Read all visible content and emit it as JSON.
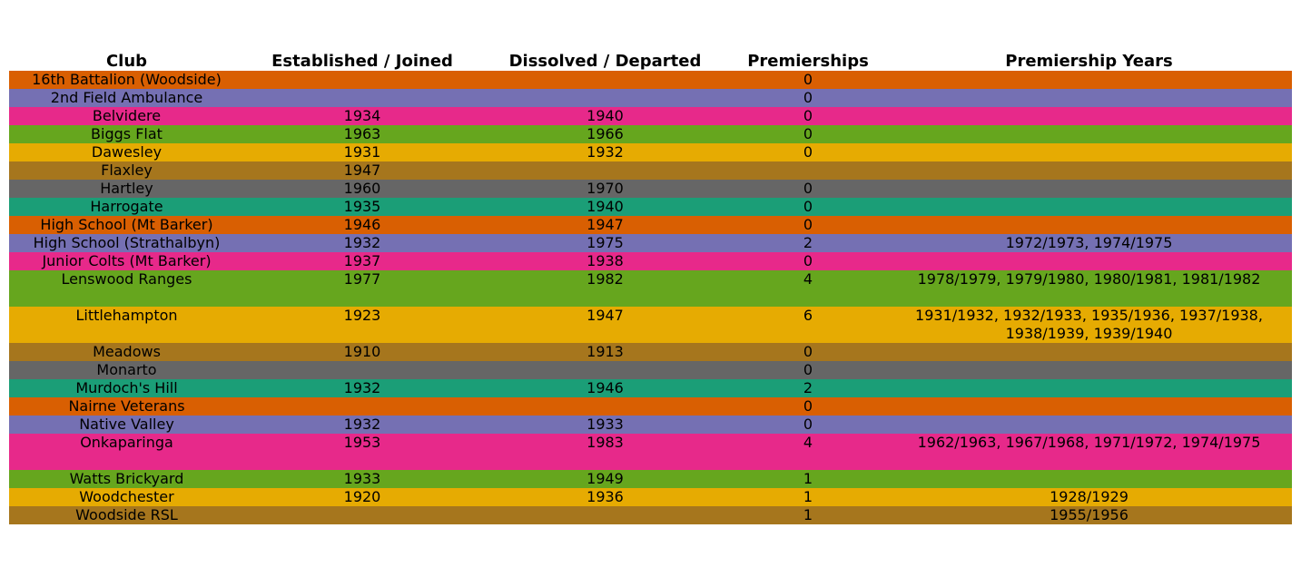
{
  "chart_data": {
    "type": "table",
    "columns": [
      "Club",
      "Established / Joined",
      "Dissolved / Departed",
      "Premierships",
      "Premiership Years"
    ],
    "row_colors": [
      "#d95f02",
      "#7570b3",
      "#e7298a",
      "#66a61e",
      "#e6ab02",
      "#a6761d",
      "#666666",
      "#1b9e77"
    ],
    "rows": [
      [
        "16th Battalion (Woodside)",
        "",
        "",
        "0",
        ""
      ],
      [
        "2nd Field Ambulance",
        "",
        "",
        "0",
        ""
      ],
      [
        "Belvidere",
        "1934",
        "1940",
        "0",
        ""
      ],
      [
        "Biggs Flat",
        "1963",
        "1966",
        "0",
        ""
      ],
      [
        "Dawesley",
        "1931",
        "1932",
        "0",
        ""
      ],
      [
        "Flaxley",
        "1947",
        "",
        "",
        ""
      ],
      [
        "Hartley",
        "1960",
        "1970",
        "0",
        ""
      ],
      [
        "Harrogate",
        "1935",
        "1940",
        "0",
        ""
      ],
      [
        "High School (Mt Barker)",
        "1946",
        "1947",
        "0",
        ""
      ],
      [
        "High School (Strathalbyn)",
        "1932",
        "1975",
        "2",
        "1972/1973, 1974/1975"
      ],
      [
        "Junior Colts (Mt Barker)",
        "1937",
        "1938",
        "0",
        ""
      ],
      [
        "Lenswood Ranges",
        "1977",
        "1982",
        "4",
        "1978/1979, 1979/1980, 1980/1981, 1981/1982"
      ],
      [
        "Littlehampton",
        "1923",
        "1947",
        "6",
        "1931/1932, 1932/1933, 1935/1936, 1937/1938, 1938/1939, 1939/1940"
      ],
      [
        "Meadows",
        "1910",
        "1913",
        "0",
        ""
      ],
      [
        "Monarto",
        "",
        "",
        "0",
        ""
      ],
      [
        "Murdoch's Hill",
        "1932",
        "1946",
        "2",
        ""
      ],
      [
        "Nairne Veterans",
        "",
        "",
        "0",
        ""
      ],
      [
        "Native Valley",
        "1932",
        "1933",
        "0",
        ""
      ],
      [
        "Onkaparinga",
        "1953",
        "1983",
        "4",
        "1962/1963, 1967/1968, 1971/1972, 1974/1975"
      ],
      [
        "Watts Brickyard",
        "1933",
        "1949",
        "1",
        ""
      ],
      [
        "Woodchester",
        "1920",
        "1936",
        "1",
        "1928/1929"
      ],
      [
        "Woodside RSL",
        "",
        "",
        "1",
        "1955/1956"
      ]
    ]
  }
}
